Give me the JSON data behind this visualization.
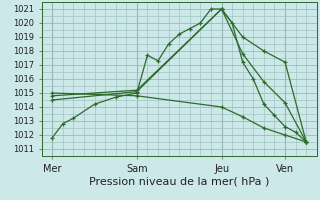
{
  "bg_color": "#cce8e8",
  "grid_color": "#99bbbb",
  "line_color": "#2d6b2d",
  "xlabel": "Pression niveau de la mer( hPa )",
  "xlabel_fontsize": 8,
  "yticks": [
    1011,
    1012,
    1013,
    1014,
    1015,
    1016,
    1017,
    1018,
    1019,
    1020,
    1021
  ],
  "ylim": [
    1010.5,
    1021.5
  ],
  "xlim": [
    -0.5,
    12.5
  ],
  "xtick_labels": [
    "Mer",
    "Sam",
    "Jeu",
    "Ven"
  ],
  "xtick_positions": [
    0,
    4,
    8,
    11
  ],
  "vlines": [
    0,
    4,
    8,
    11
  ],
  "series": [
    {
      "x": [
        0.0,
        0.5,
        1.0,
        2.0,
        3.0,
        4.0,
        4.5,
        5.0,
        5.5,
        6.0,
        6.5,
        7.0,
        7.5,
        8.0,
        8.5,
        9.0,
        9.5,
        10.0,
        10.5,
        11.0,
        11.5,
        12.0
      ],
      "y": [
        1011.8,
        1012.8,
        1013.2,
        1014.2,
        1014.7,
        1015.0,
        1017.7,
        1017.3,
        1018.5,
        1019.2,
        1019.6,
        1020.0,
        1021.0,
        1021.0,
        1020.0,
        1017.2,
        1016.0,
        1014.2,
        1013.4,
        1012.6,
        1012.2,
        1011.5
      ]
    },
    {
      "x": [
        0.0,
        4.0,
        8.0,
        9.0,
        10.0,
        11.0,
        12.0
      ],
      "y": [
        1014.5,
        1015.1,
        1021.0,
        1019.0,
        1018.0,
        1017.2,
        1011.5
      ]
    },
    {
      "x": [
        0.0,
        4.0,
        8.0,
        9.0,
        10.0,
        11.0,
        12.0
      ],
      "y": [
        1014.8,
        1015.2,
        1021.0,
        1017.8,
        1015.8,
        1014.3,
        1011.5
      ]
    },
    {
      "x": [
        0.0,
        4.0,
        8.0,
        9.0,
        10.0,
        11.0,
        12.0
      ],
      "y": [
        1015.0,
        1014.8,
        1014.0,
        1013.3,
        1012.5,
        1012.0,
        1011.5
      ]
    }
  ]
}
